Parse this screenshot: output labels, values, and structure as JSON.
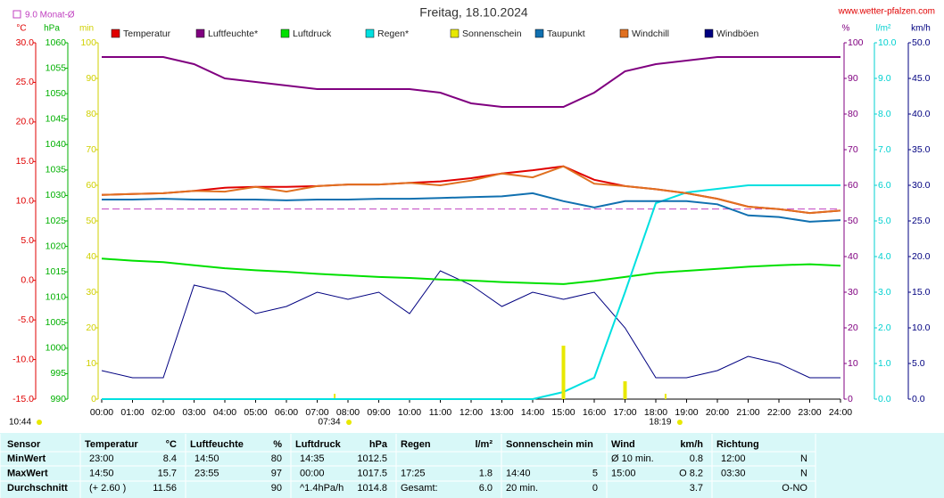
{
  "chart_data": {
    "type": "line",
    "title": "Freitag, 18.10.2024",
    "source": "www.wetter-pfalzen.com",
    "monthly_mean": {
      "value": 9.0,
      "label": "9.0 Monat-Ø"
    },
    "sunrise": "07:34",
    "sunset": "18:19",
    "sun_duration": "10:44",
    "categories": [
      "00:00",
      "01:00",
      "02:00",
      "03:00",
      "04:00",
      "05:00",
      "06:00",
      "07:00",
      "08:00",
      "09:00",
      "10:00",
      "11:00",
      "12:00",
      "13:00",
      "14:00",
      "15:00",
      "16:00",
      "17:00",
      "18:00",
      "19:00",
      "20:00",
      "21:00",
      "22:00",
      "23:00",
      "24:00"
    ],
    "axes": {
      "y": {
        "unit": "°C",
        "color": "#e00000",
        "lim": [
          -15,
          30
        ],
        "ticks": [
          {
            "value": -15,
            "label": "-15.0"
          },
          {
            "value": -10,
            "label": "-10.0"
          },
          {
            "value": -5,
            "label": "-5.0"
          },
          {
            "value": 0,
            "label": "0.0"
          },
          {
            "value": 5,
            "label": "5.0"
          },
          {
            "value": 10,
            "label": "10.0"
          },
          {
            "value": 15,
            "label": "15.0"
          },
          {
            "value": 20,
            "label": "20.0"
          },
          {
            "value": 25,
            "label": "25.0"
          },
          {
            "value": 30,
            "label": "30.0"
          }
        ]
      },
      "y3": {
        "unit": "hPa",
        "color": "#00b000",
        "lim": [
          990,
          1060
        ],
        "ticks": [
          990,
          995,
          1000,
          1005,
          1010,
          1015,
          1020,
          1025,
          1030,
          1035,
          1040,
          1045,
          1050,
          1055,
          1060
        ]
      },
      "y4": {
        "unit": "min",
        "color": "#d0d000",
        "lim": [
          0,
          100
        ],
        "ticks": [
          0,
          10,
          20,
          30,
          40,
          50,
          60,
          70,
          80,
          90,
          100
        ]
      },
      "y2": {
        "unit": "%",
        "color": "#800080",
        "lim": [
          0,
          100
        ],
        "ticks": [
          0,
          10,
          20,
          30,
          40,
          50,
          60,
          70,
          80,
          90,
          100
        ]
      },
      "y5": {
        "unit": "l/m²",
        "color": "#00d0d0",
        "lim": [
          0,
          10
        ],
        "ticks": [
          {
            "value": 0,
            "label": "0.0"
          },
          {
            "value": 1,
            "label": "1.0"
          },
          {
            "value": 2,
            "label": "2.0"
          },
          {
            "value": 3,
            "label": "3.0"
          },
          {
            "value": 4,
            "label": "4.0"
          },
          {
            "value": 5,
            "label": "5.0"
          },
          {
            "value": 6,
            "label": "6.0"
          },
          {
            "value": 7,
            "label": "7.0"
          },
          {
            "value": 8,
            "label": "8.0"
          },
          {
            "value": 9,
            "label": "9.0"
          },
          {
            "value": 10,
            "label": "10.0"
          }
        ]
      },
      "y6": {
        "unit": "km/h",
        "color": "#000080",
        "lim": [
          0,
          50
        ],
        "ticks": [
          {
            "value": 0,
            "label": "0.0"
          },
          {
            "value": 5,
            "label": "5.0"
          },
          {
            "value": 10,
            "label": "10.0"
          },
          {
            "value": 15,
            "label": "15.0"
          },
          {
            "value": 20,
            "label": "20.0"
          },
          {
            "value": 25,
            "label": "25.0"
          },
          {
            "value": 30,
            "label": "30.0"
          },
          {
            "value": 35,
            "label": "35.0"
          },
          {
            "value": 40,
            "label": "40.0"
          },
          {
            "value": 45,
            "label": "45.0"
          },
          {
            "value": 50,
            "label": "50.0"
          }
        ]
      }
    },
    "series": [
      {
        "name": "Temperatur",
        "color": "#e00000",
        "axis": "y",
        "values": [
          10.8,
          10.9,
          11.0,
          11.3,
          11.7,
          11.8,
          11.8,
          11.9,
          12.1,
          12.1,
          12.3,
          12.5,
          12.9,
          13.5,
          13.9,
          14.4,
          12.7,
          11.9,
          11.5,
          11.0,
          10.3,
          9.3,
          9.0,
          8.5,
          8.8
        ]
      },
      {
        "name": "Luftfeuchte*",
        "color": "#800080",
        "axis": "y2",
        "values": [
          96,
          96,
          96,
          94,
          90,
          89,
          88,
          87,
          87,
          87,
          87,
          86,
          83,
          82,
          82,
          82,
          86,
          92,
          94,
          95,
          96,
          96,
          96,
          96,
          96
        ]
      },
      {
        "name": "Luftdruck",
        "color": "#00e000",
        "axis": "y3",
        "values": [
          1017.6,
          1017.2,
          1016.9,
          1016.3,
          1015.7,
          1015.3,
          1015.0,
          1014.6,
          1014.3,
          1014.0,
          1013.8,
          1013.5,
          1013.3,
          1013.0,
          1012.8,
          1012.6,
          1013.2,
          1014.0,
          1014.8,
          1015.2,
          1015.6,
          1016.0,
          1016.3,
          1016.5,
          1016.2
        ]
      },
      {
        "name": "Regen*",
        "color": "#00e0e0",
        "axis": "y5",
        "values": [
          0,
          0,
          0,
          0,
          0,
          0,
          0,
          0,
          0,
          0,
          0,
          0,
          0,
          0,
          0,
          0.2,
          0.6,
          3.0,
          5.5,
          5.8,
          5.9,
          6.0,
          6.0,
          6.0,
          6.0
        ]
      },
      {
        "name": "Sonnenschein",
        "color": "#e8e800",
        "axis": "y4",
        "type": "bar",
        "values": [
          0,
          0,
          0,
          0,
          0,
          0,
          0,
          0,
          0,
          0,
          0,
          0,
          0,
          0,
          0,
          15,
          0,
          5,
          0,
          0,
          0,
          0,
          0,
          0,
          0
        ]
      },
      {
        "name": "Taupunkt",
        "color": "#1070b0",
        "axis": "y",
        "values": [
          10.2,
          10.2,
          10.3,
          10.2,
          10.2,
          10.2,
          10.1,
          10.2,
          10.2,
          10.3,
          10.3,
          10.4,
          10.5,
          10.6,
          11.0,
          10.0,
          9.2,
          10.0,
          10.0,
          10.0,
          9.6,
          8.2,
          8.0,
          7.4,
          7.6
        ]
      },
      {
        "name": "Windchill",
        "color": "#e07020",
        "axis": "y",
        "values": [
          10.8,
          10.9,
          11.0,
          11.3,
          11.2,
          11.8,
          11.2,
          11.9,
          12.1,
          12.1,
          12.3,
          12.0,
          12.6,
          13.5,
          13.0,
          14.4,
          12.2,
          11.9,
          11.5,
          11.0,
          10.3,
          9.3,
          9.0,
          8.5,
          8.8
        ]
      },
      {
        "name": "Windböen",
        "color": "#000080",
        "axis": "y6",
        "values": [
          4,
          3,
          3,
          16,
          15,
          12,
          13,
          15,
          14,
          15,
          12,
          18,
          16,
          13,
          15,
          14,
          15,
          10,
          3,
          3,
          4,
          6,
          5,
          3,
          3
        ]
      }
    ]
  },
  "table": {
    "header": [
      "Sensor",
      "Temperatur",
      "°C",
      "Luftfeuchte",
      "%",
      "Luftdruck",
      "hPa",
      "Regen",
      "l/m²",
      "Sonnenschein min",
      "Wind",
      "km/h",
      "Richtung"
    ],
    "rows": [
      [
        "MinWert",
        "23:00",
        "8.4",
        "14:50",
        "80",
        "14:35",
        "1012.5",
        null,
        null,
        null,
        null,
        "Ø 10 min.",
        "0.8",
        "12:00",
        "N"
      ],
      [
        "MaxWert",
        "14:50",
        "15.7",
        "23:55",
        "97",
        "00:00",
        "1017.5",
        "17:25",
        "1.8",
        "14:40",
        "5",
        "15:00",
        "O 8.2",
        "03:30",
        "N"
      ],
      [
        "Durchschnitt",
        "(+ 2.60 )",
        "11.56",
        null,
        "90",
        "^1.4hPa/h",
        "1014.8",
        "Gesamt:",
        "6.0",
        "20 min.",
        "0",
        null,
        "3.7",
        null,
        "O-NO"
      ]
    ]
  }
}
